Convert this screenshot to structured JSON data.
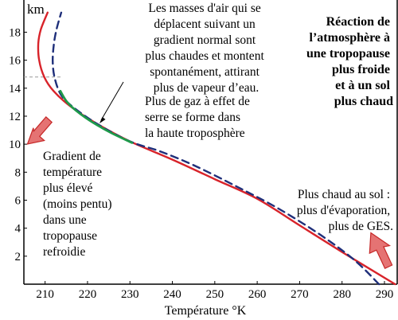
{
  "chart_data": {
    "type": "line",
    "ylabel": "km",
    "xlabel": "Température °K",
    "xlim": [
      205,
      293
    ],
    "ylim": [
      0,
      20.3
    ],
    "x_ticks": [
      210,
      220,
      230,
      240,
      250,
      260,
      270,
      280,
      290
    ],
    "y_ticks": [
      2,
      4,
      6,
      8,
      10,
      12,
      14,
      16,
      18
    ],
    "grid": false,
    "series": [
      {
        "style": "solid",
        "color": "#d8232a",
        "points": [
          [
            292.5,
            0
          ],
          [
            280,
            2.3
          ],
          [
            270,
            4.2
          ],
          [
            260,
            6.1
          ],
          [
            250,
            7.5
          ],
          [
            240,
            8.9
          ],
          [
            230,
            10.2
          ],
          [
            222,
            11.5
          ],
          [
            216,
            12.7
          ],
          [
            212,
            13.8
          ],
          [
            209.8,
            14.8
          ],
          [
            208.6,
            16
          ],
          [
            208.4,
            17.2
          ],
          [
            209,
            18.2
          ],
          [
            210.6,
            19.4
          ]
        ]
      },
      {
        "style": "dashed",
        "color": "#1f2f7a",
        "points": [
          [
            288.7,
            0
          ],
          [
            283,
            1.7
          ],
          [
            275,
            3.5
          ],
          [
            265,
            5.4
          ],
          [
            255,
            7.0
          ],
          [
            245,
            8.5
          ],
          [
            237,
            9.5
          ],
          [
            230,
            10.2
          ],
          [
            222,
            11.5
          ],
          [
            216,
            12.8
          ],
          [
            213.6,
            13.6
          ],
          [
            212.2,
            14.8
          ],
          [
            211.8,
            16
          ],
          [
            212.1,
            17.2
          ],
          [
            212.7,
            18.2
          ],
          [
            213.8,
            19.4
          ]
        ]
      },
      {
        "style": "solid",
        "color": "#1e9a4a",
        "points": [
          [
            230.5,
            10.1
          ],
          [
            225,
            10.9
          ],
          [
            219.5,
            11.9
          ],
          [
            215.5,
            12.9
          ],
          [
            213.6,
            13.8
          ]
        ]
      }
    ],
    "tropopause_heights": [
      14.8
    ],
    "annotations": {
      "masses": [
        "Les masses d'air qui se",
        "déplacent suivant un",
        "gradient normal sont",
        "plus chaudes et montent",
        "spontanément, attirant",
        "plus de vapeur d’eau."
      ],
      "reaction": [
        "Réaction de",
        "l’atmosphère à",
        "une tropopause",
        "plus froide",
        "et à un sol",
        "plus chaud"
      ],
      "gaz": [
        "Plus de gaz à effet de",
        "serre se forme dans",
        "la haute troposphère"
      ],
      "gradient": [
        "Gradient de",
        "température",
        "plus élevé",
        "(moins pentu)",
        "dans une",
        "tropopause",
        "refroidie"
      ],
      "sol": [
        "Plus chaud au sol :",
        "plus d'évaporation,",
        "plus de GES."
      ]
    },
    "colors": {
      "red_curve": "#d8232a",
      "dashed_curve": "#1f2f7a",
      "green_segment": "#1e9a4a",
      "arrow_fill": "#e57373",
      "arrow_stroke": "#c62828"
    }
  }
}
